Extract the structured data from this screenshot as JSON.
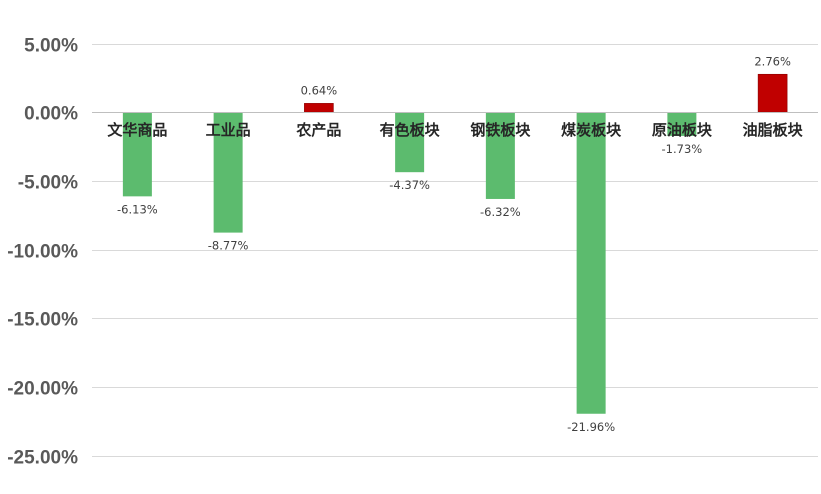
{
  "chart_data": {
    "type": "bar",
    "title": "",
    "xlabel": "",
    "ylabel": "",
    "categories": [
      "文华商品",
      "工业品",
      "农产品",
      "有色板块",
      "钢铁板块",
      "煤炭板块",
      "原油板块",
      "油脂板块"
    ],
    "values": [
      -6.13,
      -8.77,
      0.64,
      -4.37,
      -6.32,
      -21.96,
      -1.73,
      2.76
    ],
    "data_labels": [
      "-6.13%",
      "-8.77%",
      "0.64%",
      "-4.37%",
      "-6.32%",
      "-21.96%",
      "-1.73%",
      "2.76%"
    ],
    "ylim": [
      -25,
      5
    ],
    "yticks": [
      5,
      0,
      -5,
      -10,
      -15,
      -20,
      -25
    ],
    "ytick_labels": [
      "5.00%",
      "0.00%",
      "-5.00%",
      "-10.00%",
      "-15.00%",
      "-20.00%",
      "-25.00%"
    ],
    "grid": true,
    "legend": "none",
    "colors": {
      "positive": "#C00000",
      "negative": "#5CBB6E",
      "grid": "#D9D9D9",
      "axis": "#BFBFBF"
    }
  }
}
